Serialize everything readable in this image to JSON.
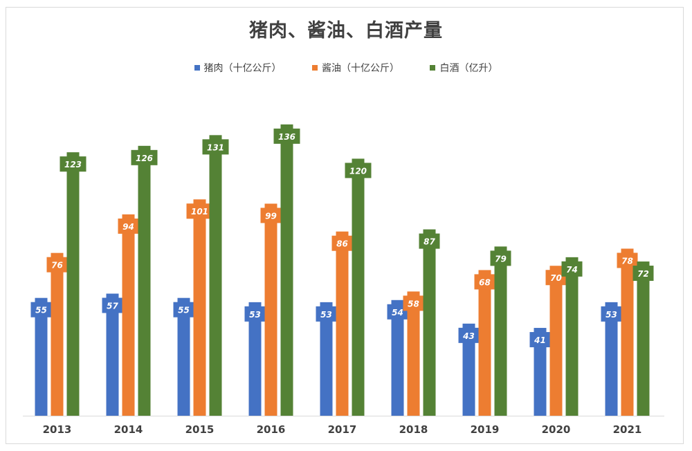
{
  "chart_data": {
    "type": "bar",
    "title": "猪肉、酱油、白酒产量",
    "categories": [
      "2013",
      "2014",
      "2015",
      "2016",
      "2017",
      "2018",
      "2019",
      "2020",
      "2021"
    ],
    "series": [
      {
        "name": "猪肉（十亿公斤）",
        "color": "#4472c4",
        "values": [
          55,
          57,
          55,
          53,
          53,
          54,
          43,
          41,
          53
        ]
      },
      {
        "name": "酱油（十亿公斤）",
        "color": "#ed7d31",
        "values": [
          76,
          94,
          101,
          99,
          86,
          58,
          68,
          70,
          78
        ]
      },
      {
        "name": "白酒（亿升）",
        "color": "#548235",
        "values": [
          123,
          126,
          131,
          136,
          120,
          87,
          79,
          74,
          72
        ]
      }
    ],
    "xlabel": "",
    "ylabel": "",
    "ylim": [
      0,
      145
    ],
    "grid": false,
    "legend_position": "top",
    "data_labels": true
  }
}
